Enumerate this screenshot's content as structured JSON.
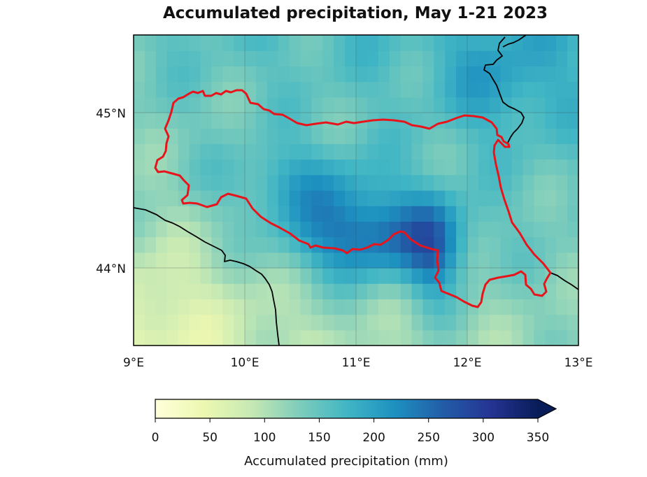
{
  "title": "Accumulated precipitation, May 1-21 2023",
  "map": {
    "lon_range": [
      9,
      13
    ],
    "lat_range": [
      43.5,
      45.5
    ],
    "x_ticks": [
      {
        "value": 9,
        "label": "9°E"
      },
      {
        "value": 10,
        "label": "10°E"
      },
      {
        "value": 11,
        "label": "11°E"
      },
      {
        "value": 12,
        "label": "12°E"
      },
      {
        "value": 13,
        "label": "13°E"
      }
    ],
    "y_ticks": [
      {
        "value": 45,
        "label": "45°N"
      },
      {
        "value": 44,
        "label": "44°N"
      }
    ],
    "gridlines": true,
    "region_outline_color": "#e8141c",
    "coastline_color": "#000000"
  },
  "colorbar": {
    "label": "Accumulated precipitation (mm)",
    "range": [
      0,
      350
    ],
    "extend": "max",
    "colormap": "YlGnBu",
    "ticks": [
      {
        "value": 0,
        "label": "0"
      },
      {
        "value": 50,
        "label": "50"
      },
      {
        "value": 100,
        "label": "100"
      },
      {
        "value": 150,
        "label": "150"
      },
      {
        "value": 200,
        "label": "200"
      },
      {
        "value": 250,
        "label": "250"
      },
      {
        "value": 300,
        "label": "300"
      },
      {
        "value": 350,
        "label": "350"
      }
    ],
    "colors": [
      "#ffffd9",
      "#edf8b1",
      "#c7e9b4",
      "#7fcdbb",
      "#41b6c4",
      "#1d91c0",
      "#225ea8",
      "#253494",
      "#081d58"
    ]
  }
}
